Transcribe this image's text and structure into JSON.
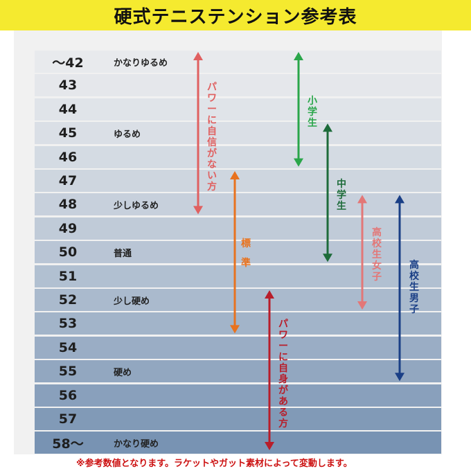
{
  "title": "硬式テニステンション参考表",
  "rows": [
    {
      "tension": "～42",
      "label": "かなりゆるめ"
    },
    {
      "tension": "43",
      "label": ""
    },
    {
      "tension": "44",
      "label": ""
    },
    {
      "tension": "45",
      "label": "ゆるめ"
    },
    {
      "tension": "46",
      "label": ""
    },
    {
      "tension": "47",
      "label": ""
    },
    {
      "tension": "48",
      "label": "少しゆるめ"
    },
    {
      "tension": "49",
      "label": ""
    },
    {
      "tension": "50",
      "label": "普通"
    },
    {
      "tension": "51",
      "label": ""
    },
    {
      "tension": "52",
      "label": "少し硬め"
    },
    {
      "tension": "53",
      "label": ""
    },
    {
      "tension": "54",
      "label": ""
    },
    {
      "tension": "55",
      "label": "硬め"
    },
    {
      "tension": "56",
      "label": ""
    },
    {
      "tension": "57",
      "label": ""
    },
    {
      "tension": "58～",
      "label": "かなり硬め"
    }
  ],
  "ranges": [
    {
      "label": "パワーに自信がない方",
      "from_row": 0,
      "to_row": 6,
      "color": "#e06060"
    },
    {
      "label": "小学生",
      "from_row": 0,
      "to_row": 4,
      "color": "#2aa64a"
    },
    {
      "label": "中学生",
      "from_row": 3,
      "to_row": 8,
      "color": "#1d6b3a"
    },
    {
      "label": "標準",
      "from_row": 5,
      "to_row": 11,
      "color": "#e8721e"
    },
    {
      "label": "高校生女子",
      "from_row": 6,
      "to_row": 10,
      "color": "#e37777"
    },
    {
      "label": "高校生男子",
      "from_row": 6,
      "to_row": 13,
      "color": "#1a3f86"
    },
    {
      "label": "パワーに自身がある方",
      "from_row": 10,
      "to_row": 16,
      "color": "#b81d2a"
    }
  ],
  "footnote": "※参考数値となります。ラケットやガット素材によって変動します。"
}
